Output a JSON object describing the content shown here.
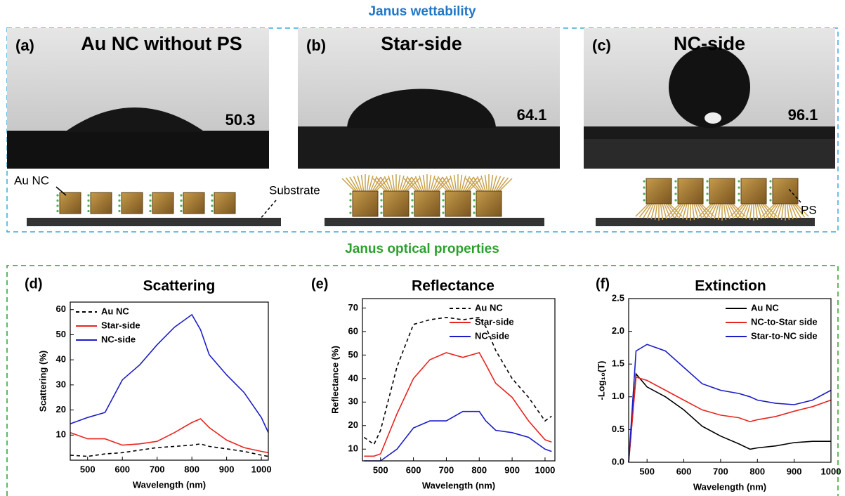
{
  "header": {
    "title": "Janus wettability",
    "optical_title": "Janus optical properties"
  },
  "wettability": {
    "panels": [
      {
        "label": "(a)",
        "title": "Au NC without PS",
        "angle": 50.3
      },
      {
        "label": "(b)",
        "title": "Star-side",
        "angle": 64.1
      },
      {
        "label": "(c)",
        "title": "NC-side",
        "angle": 96.1
      }
    ],
    "annotations": {
      "au_nc": "Au NC",
      "substrate": "Substrate",
      "ps": "PS"
    }
  },
  "chart_data": [
    {
      "type": "line",
      "panel_label": "(d)",
      "title": "Scattering",
      "xlabel": "Wavelength (nm)",
      "ylabel": "Scattering (%)",
      "legend": "upper left",
      "x": [
        450,
        500,
        550,
        600,
        650,
        700,
        750,
        800,
        825,
        850,
        900,
        950,
        1000,
        1020
      ],
      "xlim": [
        450,
        1020
      ],
      "xticks": [
        500,
        600,
        700,
        800,
        900,
        1000
      ],
      "ylim": [
        0,
        63
      ],
      "yticks": [
        10,
        20,
        30,
        40,
        50,
        60
      ],
      "series": [
        {
          "name": "Au NC",
          "color": "#000000",
          "dashed": true,
          "values": [
            2,
            1.5,
            2.5,
            3,
            4,
            5,
            5.5,
            6,
            6.5,
            5.5,
            4.5,
            3.5,
            2,
            1.5
          ]
        },
        {
          "name": "Star-side",
          "color": "#e8251f",
          "dashed": false,
          "values": [
            11,
            8.5,
            8.5,
            6,
            6.5,
            7.5,
            11,
            15,
            16.5,
            13,
            8,
            5,
            3.5,
            3
          ]
        },
        {
          "name": "NC-side",
          "color": "#1c1cc8",
          "dashed": false,
          "values": [
            14.5,
            17,
            19,
            32,
            38,
            46,
            53,
            58,
            52,
            42,
            34,
            27,
            17,
            11
          ]
        }
      ]
    },
    {
      "type": "line",
      "panel_label": "(e)",
      "title": "Reflectance",
      "xlabel": "Wavelength (nm)",
      "ylabel": "Reflectance (%)",
      "legend": "upper right",
      "x": [
        450,
        480,
        500,
        550,
        600,
        650,
        700,
        750,
        800,
        820,
        850,
        900,
        950,
        1000,
        1020
      ],
      "xlim": [
        445,
        1030
      ],
      "xticks": [
        500,
        600,
        700,
        800,
        900,
        1000
      ],
      "ylim": [
        5,
        74
      ],
      "yticks": [
        10,
        20,
        30,
        40,
        50,
        60,
        70
      ],
      "series": [
        {
          "name": "Au NC",
          "color": "#000000",
          "dashed": true,
          "values": [
            15,
            12,
            18,
            45,
            63,
            65,
            66,
            65,
            66,
            62,
            52,
            40,
            32,
            22,
            24
          ]
        },
        {
          "name": "Star-side",
          "color": "#e8251f",
          "dashed": false,
          "values": [
            7,
            7,
            8,
            25,
            40,
            48,
            51,
            49,
            51,
            46,
            38,
            32,
            22,
            14,
            13
          ]
        },
        {
          "name": "NC-side",
          "color": "#1c1cc8",
          "dashed": false,
          "values": [
            5,
            5,
            5,
            10,
            19,
            22,
            22,
            26,
            26,
            22,
            18,
            17,
            15,
            10,
            9
          ]
        }
      ]
    },
    {
      "type": "line",
      "panel_label": "(f)",
      "title": "Extinction",
      "xlabel": "Wavelength (nm)",
      "ylabel": "-Log₁₀(T)",
      "legend": "upper right",
      "x": [
        450,
        470,
        500,
        550,
        600,
        650,
        700,
        750,
        780,
        800,
        850,
        900,
        950,
        1000
      ],
      "xlim": [
        450,
        1000
      ],
      "xticks": [
        500,
        600,
        700,
        800,
        900,
        1000
      ],
      "ylim": [
        0,
        2.5
      ],
      "yticks": [
        {
          "value": 0,
          "label": "0.0"
        },
        0.5,
        {
          "value": 1,
          "label": "1.0"
        },
        1.5,
        {
          "value": 2,
          "label": "2.0"
        },
        2.5
      ],
      "series": [
        {
          "name": "Au NC",
          "color": "#000000",
          "dashed": false,
          "values": [
            0,
            1.35,
            1.15,
            1.0,
            0.8,
            0.55,
            0.4,
            0.28,
            0.2,
            0.22,
            0.25,
            0.3,
            0.32,
            0.32
          ]
        },
        {
          "name": "NC-to-Star side",
          "color": "#e8251f",
          "dashed": false,
          "values": [
            0,
            1.3,
            1.25,
            1.1,
            0.95,
            0.8,
            0.72,
            0.68,
            0.62,
            0.65,
            0.7,
            0.78,
            0.85,
            0.95
          ]
        },
        {
          "name": "Star-to-NC side",
          "color": "#1c1cc8",
          "dashed": false,
          "values": [
            0,
            1.7,
            1.8,
            1.7,
            1.45,
            1.2,
            1.1,
            1.05,
            1.0,
            0.95,
            0.9,
            0.88,
            0.95,
            1.1
          ]
        }
      ]
    }
  ]
}
